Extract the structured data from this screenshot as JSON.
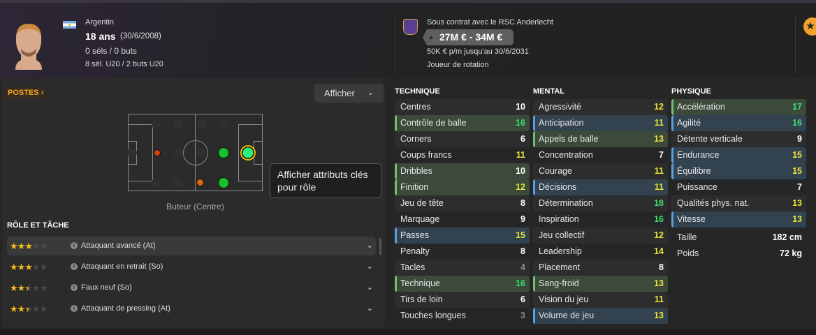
{
  "header": {
    "nationality": "Argentin",
    "age": "18 ans",
    "dob": "(30/6/2008)",
    "caps": "0 séls / 0 buts",
    "youth_caps": "8 sél. U20 / 2 buts U20",
    "club_contract": "Sous contrat avec le RSC Anderlecht",
    "value": "27M € - 34M €",
    "wage": "50K € p/m jusqu'au 30/6/2031",
    "squad_status": "Joueur de rotation",
    "star_icon": "star-icon"
  },
  "positions": {
    "label": "POSTES",
    "show_button": "Afficher",
    "selected_position": "Buteur (Centre)"
  },
  "roles": {
    "title": "RÔLE ET TÂCHE",
    "tooltip": "Afficher attributs clés pour rôle",
    "items": [
      {
        "name": "Attaquant avancé (At)",
        "stars": 3
      },
      {
        "name": "Attaquant en retrait (So)",
        "stars": 3
      },
      {
        "name": "Faux neuf (So)",
        "stars": 2.5
      },
      {
        "name": "Attaquant de pressing (At)",
        "stars": 2.5
      }
    ]
  },
  "colors": {
    "key": "#6fc06f",
    "preferred": "#5aa0e0",
    "high": "#3ddc6a",
    "good": "#e8e23a",
    "avg": "#ffffff",
    "low": "#8a8a8a",
    "accent": "#f3a32c"
  },
  "attributes": {
    "technique": {
      "title": "TECHNIQUE",
      "items": [
        {
          "name": "Centres",
          "value": 10,
          "hl": ""
        },
        {
          "name": "Contrôle de balle",
          "value": 16,
          "hl": "g"
        },
        {
          "name": "Corners",
          "value": 6,
          "hl": ""
        },
        {
          "name": "Coups francs",
          "value": 11,
          "hl": ""
        },
        {
          "name": "Dribbles",
          "value": 10,
          "hl": "g"
        },
        {
          "name": "Finition",
          "value": 12,
          "hl": "g"
        },
        {
          "name": "Jeu de tête",
          "value": 8,
          "hl": ""
        },
        {
          "name": "Marquage",
          "value": 9,
          "hl": ""
        },
        {
          "name": "Passes",
          "value": 15,
          "hl": "b"
        },
        {
          "name": "Penalty",
          "value": 8,
          "hl": ""
        },
        {
          "name": "Tacles",
          "value": 4,
          "hl": ""
        },
        {
          "name": "Technique",
          "value": 16,
          "hl": "g"
        },
        {
          "name": "Tirs de loin",
          "value": 6,
          "hl": ""
        },
        {
          "name": "Touches longues",
          "value": 3,
          "hl": ""
        }
      ]
    },
    "mental": {
      "title": "MENTAL",
      "items": [
        {
          "name": "Agressivité",
          "value": 12,
          "hl": ""
        },
        {
          "name": "Anticipation",
          "value": 11,
          "hl": "b"
        },
        {
          "name": "Appels de balle",
          "value": 13,
          "hl": "g"
        },
        {
          "name": "Concentration",
          "value": 7,
          "hl": ""
        },
        {
          "name": "Courage",
          "value": 11,
          "hl": ""
        },
        {
          "name": "Décisions",
          "value": 11,
          "hl": "b"
        },
        {
          "name": "Détermination",
          "value": 18,
          "hl": ""
        },
        {
          "name": "Inspiration",
          "value": 16,
          "hl": ""
        },
        {
          "name": "Jeu collectif",
          "value": 12,
          "hl": ""
        },
        {
          "name": "Leadership",
          "value": 14,
          "hl": ""
        },
        {
          "name": "Placement",
          "value": 8,
          "hl": ""
        },
        {
          "name": "Sang-froid",
          "value": 13,
          "hl": "g"
        },
        {
          "name": "Vision du jeu",
          "value": 11,
          "hl": ""
        },
        {
          "name": "Volume de jeu",
          "value": 13,
          "hl": "b"
        }
      ]
    },
    "physique": {
      "title": "PHYSIQUE",
      "items": [
        {
          "name": "Accélération",
          "value": 17,
          "hl": "g"
        },
        {
          "name": "Agilité",
          "value": 16,
          "hl": "b"
        },
        {
          "name": "Détente verticale",
          "value": 9,
          "hl": ""
        },
        {
          "name": "Endurance",
          "value": 15,
          "hl": "b"
        },
        {
          "name": "Équilibre",
          "value": 15,
          "hl": "b"
        },
        {
          "name": "Puissance",
          "value": 7,
          "hl": ""
        },
        {
          "name": "Qualités phys. nat.",
          "value": 13,
          "hl": ""
        },
        {
          "name": "Vitesse",
          "value": 13,
          "hl": "b"
        }
      ]
    },
    "height_label": "Taille",
    "height": "182 cm",
    "weight_label": "Poids",
    "weight": "72 kg"
  }
}
